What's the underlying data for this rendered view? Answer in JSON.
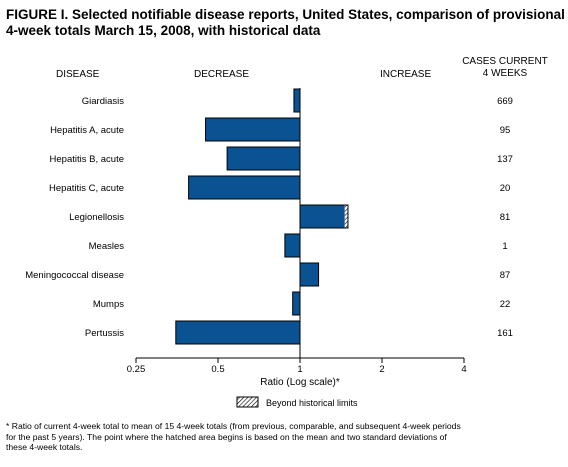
{
  "title_lines": [
    "FIGURE I. Selected notifiable disease reports, United States, comparison of provisional",
    "4-week totals March 15, 2008, with historical data"
  ],
  "headers": {
    "disease": "DISEASE",
    "decrease": "DECREASE",
    "increase": "INCREASE",
    "cases_line1": "CASES CURRENT",
    "cases_line2": "4 WEEKS"
  },
  "legend": {
    "label": "Beyond historical limits"
  },
  "footnote_lines": [
    "* Ratio of current 4-week total to mean of 15 4-week totals (from previous, comparable, and subsequent 4-week periods",
    "for the past 5 years). The point where the hatched area begins is based on the mean and two standard deviations of",
    "these 4-week totals."
  ],
  "colors": {
    "bar": "#0a5291",
    "hatch": "#000000"
  },
  "chart_data": {
    "type": "bar",
    "orientation": "horizontal",
    "xscale": "log2",
    "xlim": [
      0.25,
      4
    ],
    "xticks": [
      "0.25",
      "0.5",
      "1",
      "2",
      "4"
    ],
    "xlabel": "Ratio (Log scale)*",
    "baseline": 1,
    "categories": [
      "Giardiasis",
      "Hepatitis A, acute",
      "Hepatitis B, acute",
      "Hepatitis C, acute",
      "Legionellosis",
      "Measles",
      "Meningococcal disease",
      "Mumps",
      "Pertussis"
    ],
    "ratio": [
      0.95,
      0.45,
      0.54,
      0.39,
      1.5,
      0.88,
      1.17,
      0.94,
      0.35
    ],
    "beyond_historical_limits_from": [
      null,
      null,
      null,
      null,
      1.46,
      null,
      null,
      null,
      null
    ],
    "cases_current_4_weeks": [
      "669",
      "95",
      "137",
      "20",
      "81",
      "1",
      "87",
      "22",
      "161"
    ]
  }
}
